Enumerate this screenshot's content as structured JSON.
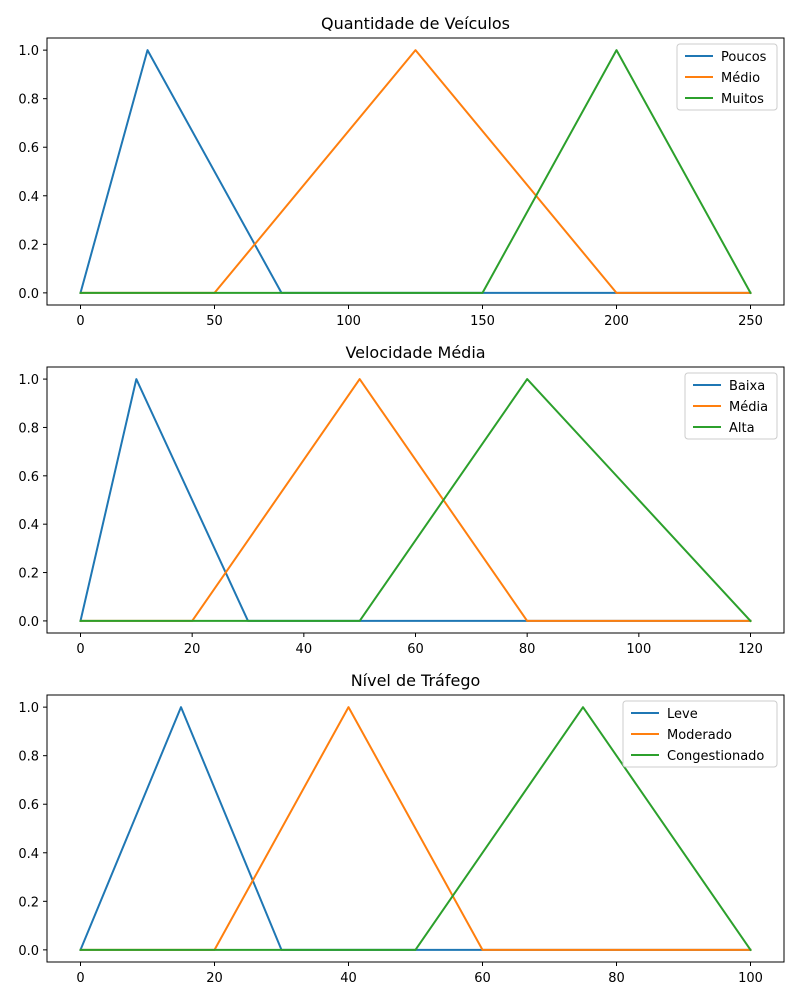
{
  "chart_data": [
    {
      "type": "line",
      "title": "Quantidade de Veículos",
      "xlabel": "",
      "ylabel": "",
      "xlim": [
        -12.5,
        262.5
      ],
      "ylim": [
        -0.05,
        1.05
      ],
      "x_ticks": [
        0,
        50,
        100,
        150,
        200,
        250
      ],
      "y_ticks": [
        0.0,
        0.2,
        0.4,
        0.6,
        0.8,
        1.0
      ],
      "y_tick_labels": [
        "0.0",
        "0.2",
        "0.4",
        "0.6",
        "0.8",
        "1.0"
      ],
      "grid": false,
      "legend_position": "top-right",
      "series": [
        {
          "name": "Poucos",
          "color": "#1f77b4",
          "x": [
            0,
            25,
            75,
            250
          ],
          "y": [
            0,
            1,
            0,
            0
          ]
        },
        {
          "name": "Médio",
          "color": "#ff7f0e",
          "x": [
            0,
            50,
            125,
            200,
            250
          ],
          "y": [
            0,
            0,
            1,
            0,
            0
          ]
        },
        {
          "name": "Muitos",
          "color": "#2ca02c",
          "x": [
            0,
            150,
            200,
            250
          ],
          "y": [
            0,
            0,
            1,
            0
          ]
        }
      ]
    },
    {
      "type": "line",
      "title": "Velocidade Média",
      "xlabel": "",
      "ylabel": "",
      "xlim": [
        -6,
        126
      ],
      "ylim": [
        -0.05,
        1.05
      ],
      "x_ticks": [
        0,
        20,
        40,
        60,
        80,
        100,
        120
      ],
      "y_ticks": [
        0.0,
        0.2,
        0.4,
        0.6,
        0.8,
        1.0
      ],
      "y_tick_labels": [
        "0.0",
        "0.2",
        "0.4",
        "0.6",
        "0.8",
        "1.0"
      ],
      "grid": false,
      "legend_position": "top-right",
      "series": [
        {
          "name": "Baixa",
          "color": "#1f77b4",
          "x": [
            0,
            10,
            30,
            120
          ],
          "y": [
            0,
            1,
            0,
            0
          ]
        },
        {
          "name": "Média",
          "color": "#ff7f0e",
          "x": [
            0,
            20,
            50,
            80,
            120
          ],
          "y": [
            0,
            0,
            1,
            0,
            0
          ]
        },
        {
          "name": "Alta",
          "color": "#2ca02c",
          "x": [
            0,
            50,
            80,
            120
          ],
          "y": [
            0,
            0,
            1,
            0
          ]
        }
      ]
    },
    {
      "type": "line",
      "title": "Nível de Tráfego",
      "xlabel": "",
      "ylabel": "",
      "xlim": [
        -5,
        105
      ],
      "ylim": [
        -0.05,
        1.05
      ],
      "x_ticks": [
        0,
        20,
        40,
        60,
        80,
        100
      ],
      "y_ticks": [
        0.0,
        0.2,
        0.4,
        0.6,
        0.8,
        1.0
      ],
      "y_tick_labels": [
        "0.0",
        "0.2",
        "0.4",
        "0.6",
        "0.8",
        "1.0"
      ],
      "grid": false,
      "legend_position": "top-right",
      "series": [
        {
          "name": "Leve",
          "color": "#1f77b4",
          "x": [
            0,
            15,
            30,
            100
          ],
          "y": [
            0,
            1,
            0,
            0
          ]
        },
        {
          "name": "Moderado",
          "color": "#ff7f0e",
          "x": [
            0,
            20,
            40,
            60,
            100
          ],
          "y": [
            0,
            0,
            1,
            0,
            0
          ]
        },
        {
          "name": "Congestionado",
          "color": "#2ca02c",
          "x": [
            0,
            50,
            75,
            100
          ],
          "y": [
            0,
            0,
            1,
            0
          ]
        }
      ]
    }
  ]
}
